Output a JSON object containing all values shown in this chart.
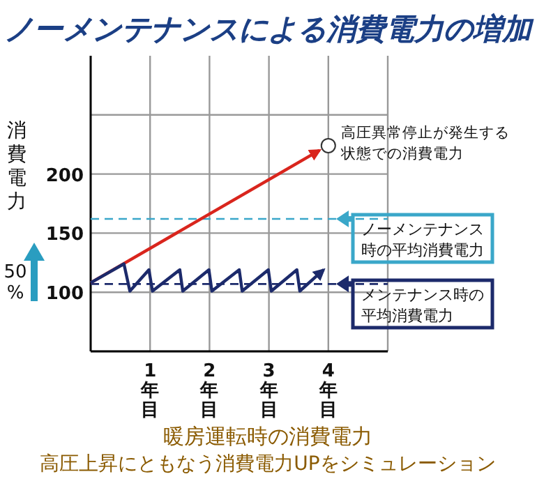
{
  "chart_data": {
    "type": "line",
    "title": "ノーメンテナンスによる消費電力の増加",
    "subtitle": "暖房運転時の消費電力",
    "legend": "right",
    "ylabel": "消費電力",
    "xlim": [
      0,
      5
    ],
    "ylim": [
      50,
      300
    ],
    "xticks": [
      {
        "value": 1,
        "label": "1年目"
      },
      {
        "value": 2,
        "label": "2年目"
      },
      {
        "value": 3,
        "label": "3年目"
      },
      {
        "value": 4,
        "label": "4年目"
      }
    ],
    "yticks": [
      {
        "value": 50,
        "label": null
      },
      100,
      150,
      200,
      {
        "value": 250,
        "label": null
      }
    ],
    "grid": true,
    "series": [
      {
        "color": "#d9251d",
        "x": [
          0,
          3.85
        ],
        "values": [
          108,
          220
        ]
      },
      {
        "color": "#1c2a6b",
        "x": [
          0,
          0.56,
          0.66,
          0.98,
          1.04,
          1.5,
          1.55,
          1.99,
          2.04,
          2.5,
          2.55,
          2.99,
          3.04,
          3.47,
          3.52,
          3.92
        ],
        "values": [
          108,
          124,
          101,
          119,
          101,
          119,
          101,
          119,
          101,
          119,
          101,
          119,
          101,
          119,
          101,
          119
        ]
      }
    ],
    "ref_lines": [
      {
        "axis": "y",
        "value": 162,
        "label": "ノーメンテナンス時の平均消費電力",
        "color": "#3aa7c9",
        "line_style": "dashed"
      },
      {
        "axis": "y",
        "value": 107,
        "label": "メンテナンス時の平均消費電力",
        "color": "#1c2a6b",
        "line_style": "dashed"
      }
    ],
    "annotations": [
      {
        "text": "高圧異常停止が発生する状態での消費電力",
        "x": 4,
        "y": 224
      },
      "50%",
      "高圧上昇にともなう消費電力UPをシミュレーション"
    ]
  }
}
